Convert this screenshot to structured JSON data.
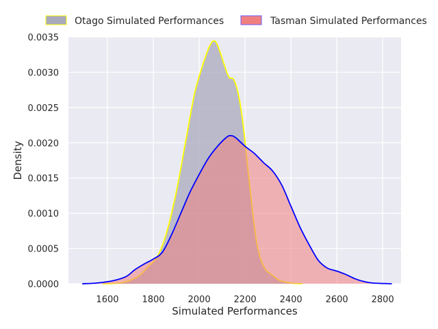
{
  "chart_data": {
    "type": "area",
    "title": "",
    "xlabel": "Simulated Performances",
    "ylabel": "Density",
    "xlim": [
      1430,
      2880
    ],
    "ylim": [
      0,
      0.0035
    ],
    "x_ticks": [
      1600,
      1800,
      2000,
      2200,
      2400,
      2600,
      2800
    ],
    "x_tick_labels": [
      "1600",
      "1800",
      "2000",
      "2200",
      "2400",
      "2600",
      "2800"
    ],
    "y_ticks": [
      0,
      0.0005,
      0.001,
      0.0015,
      0.002,
      0.0025,
      0.003,
      0.0035
    ],
    "y_tick_labels": [
      "0.0000",
      "0.0005",
      "0.0010",
      "0.0015",
      "0.0020",
      "0.0025",
      "0.0030",
      "0.0035"
    ],
    "grid": true,
    "legend_position": "top",
    "background": "#eaeaf2",
    "series": [
      {
        "name": "Otago Simulated Performances",
        "fill": "#a9aabc",
        "fill_opacity": 0.75,
        "line": "#ffff00",
        "points": [
          [
            1580,
            0
          ],
          [
            1650,
            1e-05
          ],
          [
            1700,
            5e-05
          ],
          [
            1740,
            0.00012
          ],
          [
            1780,
            0.00025
          ],
          [
            1820,
            0.0004
          ],
          [
            1860,
            0.00075
          ],
          [
            1900,
            0.0013
          ],
          [
            1940,
            0.002
          ],
          [
            1980,
            0.0027
          ],
          [
            2020,
            0.00315
          ],
          [
            2050,
            0.0034
          ],
          [
            2070,
            0.00344
          ],
          [
            2090,
            0.0033
          ],
          [
            2110,
            0.0031
          ],
          [
            2130,
            0.00293
          ],
          [
            2150,
            0.0029
          ],
          [
            2170,
            0.0027
          ],
          [
            2190,
            0.0023
          ],
          [
            2210,
            0.0017
          ],
          [
            2230,
            0.0011
          ],
          [
            2250,
            0.0006
          ],
          [
            2270,
            0.00033
          ],
          [
            2290,
            0.0002
          ],
          [
            2320,
            0.00012
          ],
          [
            2350,
            5e-05
          ],
          [
            2400,
            1e-05
          ],
          [
            2450,
            0
          ]
        ]
      },
      {
        "name": "Tasman Simulated Performances",
        "fill": "#f08080",
        "fill_opacity": 0.55,
        "line": "#0000ff",
        "points": [
          [
            1490,
            0
          ],
          [
            1550,
            1e-05
          ],
          [
            1620,
            4e-05
          ],
          [
            1680,
            0.0001
          ],
          [
            1720,
            0.0002
          ],
          [
            1760,
            0.00028
          ],
          [
            1800,
            0.00035
          ],
          [
            1840,
            0.00045
          ],
          [
            1880,
            0.0007
          ],
          [
            1920,
            0.001
          ],
          [
            1960,
            0.0013
          ],
          [
            2000,
            0.00155
          ],
          [
            2040,
            0.00178
          ],
          [
            2080,
            0.00195
          ],
          [
            2120,
            0.00208
          ],
          [
            2140,
            0.0021
          ],
          [
            2160,
            0.00207
          ],
          [
            2200,
            0.00195
          ],
          [
            2240,
            0.00185
          ],
          [
            2280,
            0.00172
          ],
          [
            2320,
            0.0016
          ],
          [
            2360,
            0.0014
          ],
          [
            2400,
            0.0011
          ],
          [
            2440,
            0.0008
          ],
          [
            2480,
            0.00055
          ],
          [
            2520,
            0.00033
          ],
          [
            2560,
            0.00022
          ],
          [
            2600,
            0.00018
          ],
          [
            2640,
            0.00013
          ],
          [
            2680,
            7e-05
          ],
          [
            2720,
            3e-05
          ],
          [
            2760,
            1e-05
          ],
          [
            2840,
            0
          ]
        ]
      }
    ]
  }
}
